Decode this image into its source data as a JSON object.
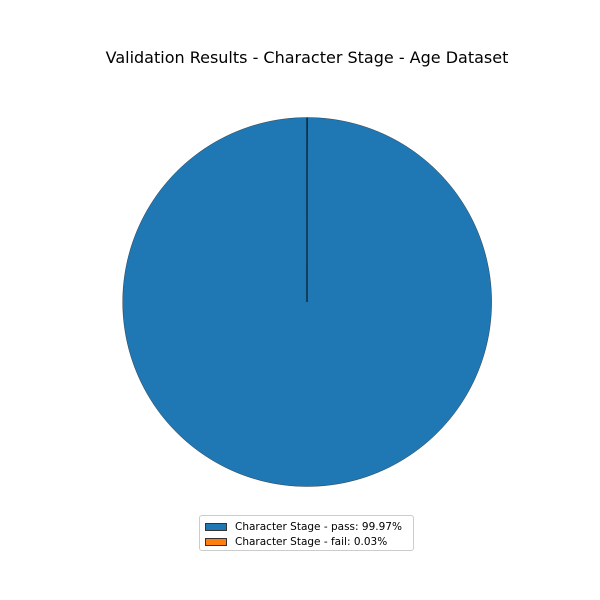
{
  "chart_data": {
    "type": "pie",
    "title": "Validation Results - Character Stage - Age Dataset",
    "slices": [
      {
        "label": "Character Stage - pass: 99.97%",
        "value": 99.97,
        "color": "#1f77b4"
      },
      {
        "label": "Character Stage - fail: 0.03%",
        "value": 0.03,
        "color": "#ff7f0e"
      }
    ],
    "start_angle": "12 o'clock",
    "direction": "counterclockwise",
    "legend_position": "bottom-center"
  }
}
